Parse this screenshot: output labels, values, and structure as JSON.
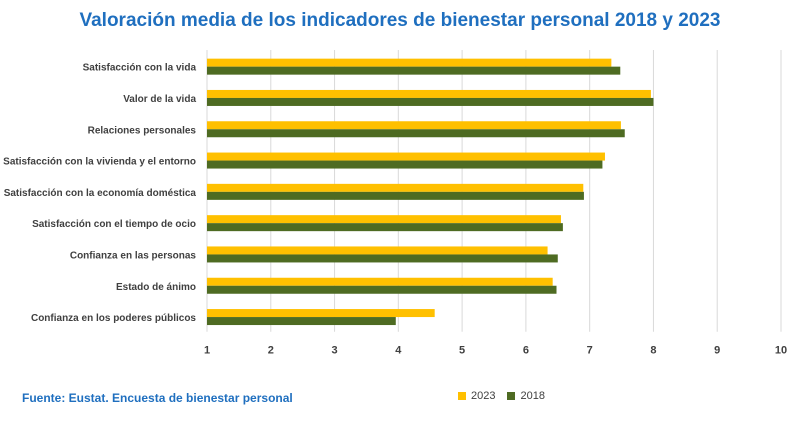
{
  "colors": {
    "title": "#1f6fbf",
    "series_2023": "#ffc000",
    "series_2018": "#4e6b22",
    "grid": "#d9d9d9",
    "label": "#404040"
  },
  "source": "Fuente: Eustat. Encuesta de bienestar personal",
  "chart_data": {
    "type": "bar",
    "orientation": "horizontal",
    "title": "Valoración media de los indicadores de bienestar personal 2018 y 2023",
    "categories": [
      "Satisfacción con la vida",
      "Valor de la vida",
      "Relaciones personales",
      "Satisfacción con la vivienda y el entorno",
      "Satisfacción con la economía doméstica",
      "Satisfacción con el tiempo de ocio",
      "Confianza en las personas",
      "Estado de ánimo",
      "Confianza en los poderes públicos"
    ],
    "series": [
      {
        "name": "2023",
        "values": [
          7.34,
          7.96,
          7.49,
          7.24,
          6.9,
          6.55,
          6.34,
          6.42,
          4.57
        ]
      },
      {
        "name": "2018",
        "values": [
          7.48,
          8.0,
          7.55,
          7.2,
          6.91,
          6.58,
          6.5,
          6.48,
          3.96
        ]
      }
    ],
    "xlim": [
      1,
      10
    ],
    "xticks": [
      "1",
      "2",
      "3",
      "4",
      "5",
      "6",
      "7",
      "8",
      "9",
      "10"
    ],
    "grid": true,
    "legend": "bottom-right",
    "xlabel": "",
    "ylabel": ""
  }
}
